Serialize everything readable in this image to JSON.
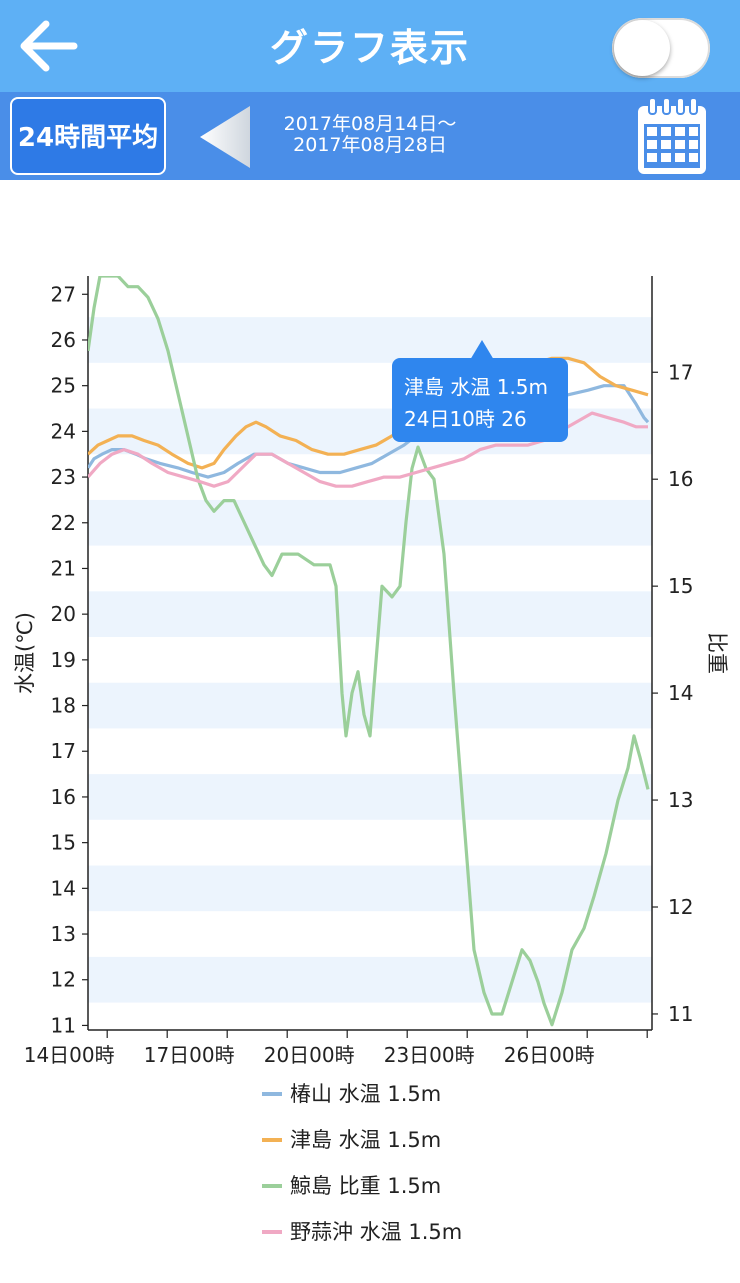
{
  "header": {
    "title": "グラフ表示",
    "back_icon": "arrow-left-icon",
    "toggle_on": false
  },
  "toolbar": {
    "average_label": "24時間平均",
    "date_from": "2017年08月14日～",
    "date_to": "2017年08月28日",
    "prev_icon": "triangle-left-icon",
    "calendar_icon": "calendar-icon"
  },
  "colors": {
    "header": "#5eb0f5",
    "toolbar": "#4a8ee8",
    "band": "#ecf4fd",
    "tooltip": "#2f86ee"
  },
  "chart_data": {
    "type": "line",
    "x_ticks": [
      "14日00時",
      "17日00時",
      "20日00時",
      "23日00時",
      "26日00時"
    ],
    "ylabel_left": "水温(℃)",
    "ylabel_right": "比重",
    "ylim_left": [
      10.9,
      27.4
    ],
    "ylim_right": [
      10.85,
      17.9
    ],
    "yticks_left": [
      11,
      12,
      13,
      14,
      15,
      16,
      17,
      18,
      19,
      20,
      21,
      22,
      23,
      24,
      25,
      26,
      27
    ],
    "yticks_right": [
      11,
      12,
      13,
      14,
      15,
      16,
      17
    ],
    "grid": "horizontal-bands",
    "legend_position": "bottom",
    "series": [
      {
        "name": "椿山 水温 1.5m",
        "color": "#8fb8df",
        "axis": "left",
        "points": [
          [
            0,
            23.2
          ],
          [
            0.3,
            23.4
          ],
          [
            0.7,
            23.5
          ],
          [
            1.2,
            23.6
          ],
          [
            1.8,
            23.6
          ],
          [
            2.4,
            23.5
          ],
          [
            2.9,
            23.4
          ],
          [
            3.6,
            23.3
          ],
          [
            4.5,
            23.2
          ],
          [
            5.2,
            23.1
          ],
          [
            6.0,
            23.0
          ],
          [
            6.8,
            23.1
          ],
          [
            7.5,
            23.3
          ],
          [
            8.3,
            23.5
          ],
          [
            9.2,
            23.5
          ],
          [
            10.0,
            23.3
          ],
          [
            10.8,
            23.2
          ],
          [
            11.6,
            23.1
          ],
          [
            12.6,
            23.1
          ],
          [
            13.4,
            23.2
          ],
          [
            14.2,
            23.3
          ],
          [
            15.0,
            23.5
          ],
          [
            15.8,
            23.7
          ],
          [
            16.4,
            23.9
          ],
          [
            17.0,
            24.2
          ],
          [
            17.6,
            24.5
          ],
          [
            18.0,
            24.8
          ],
          [
            18.6,
            25.0
          ],
          [
            19.2,
            25.0
          ],
          [
            20.0,
            25.0
          ],
          [
            20.8,
            25.1
          ],
          [
            21.6,
            25.0
          ],
          [
            22.4,
            24.9
          ],
          [
            23.2,
            24.8
          ],
          [
            24.0,
            24.8
          ],
          [
            25.0,
            24.9
          ],
          [
            25.8,
            25.0
          ],
          [
            26.8,
            25.0
          ],
          [
            27.4,
            24.6
          ],
          [
            27.8,
            24.3
          ],
          [
            28.0,
            24.2
          ]
        ]
      },
      {
        "name": "津島 水温 1.5m",
        "color": "#f3b154",
        "axis": "left",
        "points": [
          [
            0,
            23.5
          ],
          [
            0.5,
            23.7
          ],
          [
            1.0,
            23.8
          ],
          [
            1.5,
            23.9
          ],
          [
            2.2,
            23.9
          ],
          [
            2.8,
            23.8
          ],
          [
            3.5,
            23.7
          ],
          [
            4.2,
            23.5
          ],
          [
            5.0,
            23.3
          ],
          [
            5.7,
            23.2
          ],
          [
            6.3,
            23.3
          ],
          [
            6.8,
            23.6
          ],
          [
            7.4,
            23.9
          ],
          [
            7.9,
            24.1
          ],
          [
            8.4,
            24.2
          ],
          [
            8.9,
            24.1
          ],
          [
            9.6,
            23.9
          ],
          [
            10.4,
            23.8
          ],
          [
            11.2,
            23.6
          ],
          [
            12.0,
            23.5
          ],
          [
            12.8,
            23.5
          ],
          [
            13.6,
            23.6
          ],
          [
            14.4,
            23.7
          ],
          [
            15.2,
            23.9
          ],
          [
            16.0,
            24.1
          ],
          [
            16.8,
            24.3
          ],
          [
            17.6,
            24.7
          ],
          [
            18.4,
            25.2
          ],
          [
            19.2,
            25.5
          ],
          [
            20.0,
            25.5
          ],
          [
            20.8,
            25.5
          ],
          [
            21.6,
            25.5
          ],
          [
            22.4,
            25.5
          ],
          [
            23.2,
            25.6
          ],
          [
            24.0,
            25.6
          ],
          [
            24.8,
            25.5
          ],
          [
            25.6,
            25.2
          ],
          [
            26.4,
            25.0
          ],
          [
            27.2,
            24.9
          ],
          [
            28.0,
            24.8
          ]
        ]
      },
      {
        "name": "鯨島 比重 1.5m",
        "color": "#9bcf9a",
        "axis": "right",
        "points": [
          [
            0,
            17.2
          ],
          [
            0.3,
            17.6
          ],
          [
            0.6,
            17.9
          ],
          [
            1.0,
            17.9
          ],
          [
            1.5,
            17.9
          ],
          [
            2.0,
            17.8
          ],
          [
            2.5,
            17.8
          ],
          [
            3.0,
            17.7
          ],
          [
            3.5,
            17.5
          ],
          [
            4.0,
            17.2
          ],
          [
            4.5,
            16.8
          ],
          [
            5.0,
            16.4
          ],
          [
            5.5,
            16.0
          ],
          [
            5.9,
            15.8
          ],
          [
            6.3,
            15.7
          ],
          [
            6.8,
            15.8
          ],
          [
            7.3,
            15.8
          ],
          [
            7.8,
            15.6
          ],
          [
            8.3,
            15.4
          ],
          [
            8.8,
            15.2
          ],
          [
            9.2,
            15.1
          ],
          [
            9.7,
            15.3
          ],
          [
            10.5,
            15.3
          ],
          [
            11.3,
            15.2
          ],
          [
            12.1,
            15.2
          ],
          [
            12.4,
            15.0
          ],
          [
            12.7,
            14.0
          ],
          [
            12.9,
            13.6
          ],
          [
            13.2,
            14.0
          ],
          [
            13.5,
            14.2
          ],
          [
            13.8,
            13.8
          ],
          [
            14.1,
            13.6
          ],
          [
            14.4,
            14.3
          ],
          [
            14.7,
            15.0
          ],
          [
            15.2,
            14.9
          ],
          [
            15.6,
            15.0
          ],
          [
            15.9,
            15.6
          ],
          [
            16.2,
            16.1
          ],
          [
            16.5,
            16.3
          ],
          [
            16.9,
            16.1
          ],
          [
            17.3,
            16.0
          ],
          [
            17.8,
            15.3
          ],
          [
            18.3,
            14.0
          ],
          [
            18.8,
            12.8
          ],
          [
            19.3,
            11.6
          ],
          [
            19.8,
            11.2
          ],
          [
            20.2,
            11.0
          ],
          [
            20.7,
            11.0
          ],
          [
            21.2,
            11.3
          ],
          [
            21.7,
            11.6
          ],
          [
            22.1,
            11.5
          ],
          [
            22.5,
            11.3
          ],
          [
            22.8,
            11.1
          ],
          [
            23.2,
            10.9
          ],
          [
            23.7,
            11.2
          ],
          [
            24.2,
            11.6
          ],
          [
            24.8,
            11.8
          ],
          [
            25.3,
            12.1
          ],
          [
            25.9,
            12.5
          ],
          [
            26.5,
            13.0
          ],
          [
            27.0,
            13.3
          ],
          [
            27.3,
            13.6
          ],
          [
            27.6,
            13.4
          ],
          [
            28.0,
            13.1
          ]
        ]
      },
      {
        "name": "野蒜沖 水温 1.5m",
        "color": "#f0a9c4",
        "axis": "left",
        "points": [
          [
            0,
            23.0
          ],
          [
            0.6,
            23.3
          ],
          [
            1.2,
            23.5
          ],
          [
            1.8,
            23.6
          ],
          [
            2.5,
            23.5
          ],
          [
            3.2,
            23.3
          ],
          [
            4.0,
            23.1
          ],
          [
            4.8,
            23.0
          ],
          [
            5.6,
            22.9
          ],
          [
            6.3,
            22.8
          ],
          [
            7.0,
            22.9
          ],
          [
            7.7,
            23.2
          ],
          [
            8.4,
            23.5
          ],
          [
            9.2,
            23.5
          ],
          [
            10.0,
            23.3
          ],
          [
            10.8,
            23.1
          ],
          [
            11.6,
            22.9
          ],
          [
            12.4,
            22.8
          ],
          [
            13.2,
            22.8
          ],
          [
            14.0,
            22.9
          ],
          [
            14.8,
            23.0
          ],
          [
            15.6,
            23.0
          ],
          [
            16.4,
            23.1
          ],
          [
            17.2,
            23.2
          ],
          [
            18.0,
            23.3
          ],
          [
            18.8,
            23.4
          ],
          [
            19.6,
            23.6
          ],
          [
            20.4,
            23.7
          ],
          [
            21.2,
            23.7
          ],
          [
            22.0,
            23.7
          ],
          [
            22.8,
            23.8
          ],
          [
            23.6,
            24.0
          ],
          [
            24.4,
            24.2
          ],
          [
            25.2,
            24.4
          ],
          [
            26.0,
            24.3
          ],
          [
            26.8,
            24.2
          ],
          [
            27.4,
            24.1
          ],
          [
            28.0,
            24.1
          ]
        ]
      }
    ],
    "tooltip": {
      "line1": "津島 水温 1.5m",
      "line2": "24日10時 26",
      "x": 19.7
    }
  }
}
